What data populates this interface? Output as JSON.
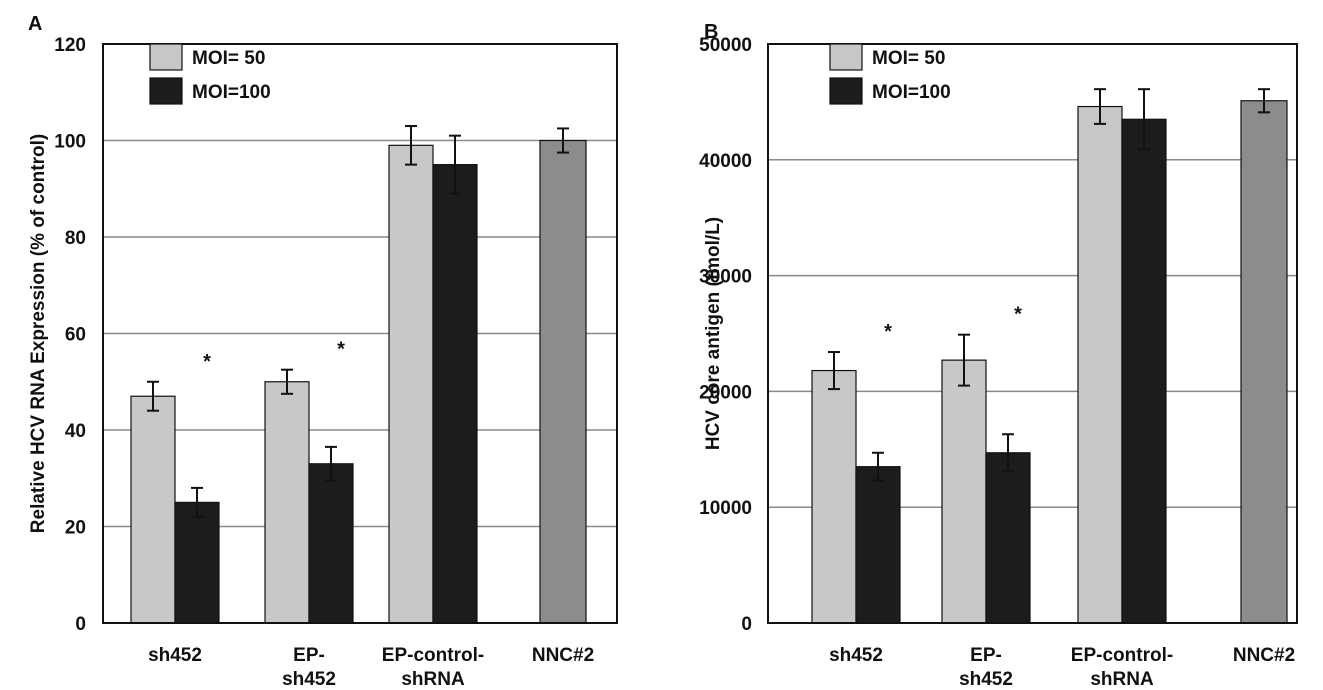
{
  "colors": {
    "light": "#c8c8c8",
    "dark": "#1c1c1c",
    "gray": "#8c8c8c",
    "grid": "#8a8a8a",
    "axis": "#111111"
  },
  "chart_data": [
    {
      "panel": "A",
      "type": "bar",
      "ylabel": "Relative HCV RNA Expression (% of control)",
      "xlabel": "",
      "ylim": [
        0,
        120
      ],
      "yticks": [
        0,
        20,
        40,
        60,
        80,
        100,
        120
      ],
      "grid": true,
      "legend": "top-left",
      "categories": [
        [
          "sh452"
        ],
        [
          "EP-",
          "sh452"
        ],
        [
          "EP-control-",
          "shRNA"
        ],
        [
          "NNC#2"
        ]
      ],
      "series": [
        {
          "name": "MOI=  50",
          "color": "light",
          "values": [
            47,
            50,
            99,
            null
          ],
          "errors": [
            3,
            2.5,
            4,
            null
          ]
        },
        {
          "name": "MOI=100",
          "color": "dark",
          "values": [
            25,
            33,
            95,
            null
          ],
          "errors": [
            3,
            3.5,
            6,
            null
          ]
        }
      ],
      "control": {
        "category": 3,
        "color": "gray",
        "value": 100,
        "error": 2.5
      },
      "annotations": [
        {
          "text": "*",
          "category": 0
        },
        {
          "text": "*",
          "category": 1
        }
      ]
    },
    {
      "panel": "B",
      "type": "bar",
      "ylabel": "HCV core antigen (fmol/L)",
      "xlabel": "",
      "ylim": [
        0,
        50000
      ],
      "yticks": [
        0,
        10000,
        20000,
        30000,
        40000,
        50000
      ],
      "grid": true,
      "legend": "top-left",
      "categories": [
        [
          "sh452"
        ],
        [
          "EP-",
          "sh452"
        ],
        [
          "EP-control-",
          "shRNA"
        ],
        [
          "NNC#2"
        ]
      ],
      "series": [
        {
          "name": "MOI=  50",
          "color": "light",
          "values": [
            21800,
            22700,
            44600,
            null
          ],
          "errors": [
            1600,
            2200,
            1500,
            null
          ]
        },
        {
          "name": "MOI=100",
          "color": "dark",
          "values": [
            13500,
            14700,
            43500,
            null
          ],
          "errors": [
            1200,
            1600,
            2600,
            null
          ]
        }
      ],
      "control": {
        "category": 3,
        "color": "gray",
        "value": 45100,
        "error": 1000
      },
      "annotations": [
        {
          "text": "*",
          "category": 0
        },
        {
          "text": "*",
          "category": 1
        }
      ]
    }
  ]
}
